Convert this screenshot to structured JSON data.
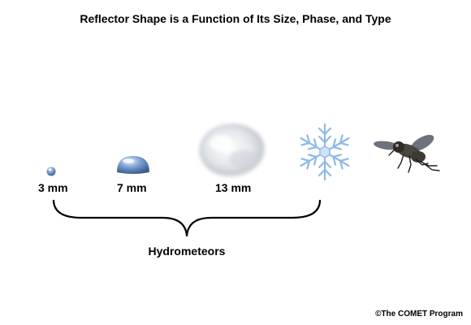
{
  "title": "Reflector Shape is a Function of Its Size, Phase, and Type",
  "hydrometeors": [
    {
      "label": "3 mm",
      "icon": "small-raindrop-icon"
    },
    {
      "label": "7 mm",
      "icon": "large-raindrop-icon"
    },
    {
      "label": "13 mm",
      "icon": "hailstone-icon"
    },
    {
      "icon": "snowflake-icon"
    }
  ],
  "insect": {
    "icon": "insect-icon"
  },
  "group_label": "Hydrometeors",
  "credit": "©The COMET Program",
  "colors": {
    "drop": "#6f96c8",
    "snowflake": "#8fb9e6",
    "hail": "#d8dbe0"
  }
}
